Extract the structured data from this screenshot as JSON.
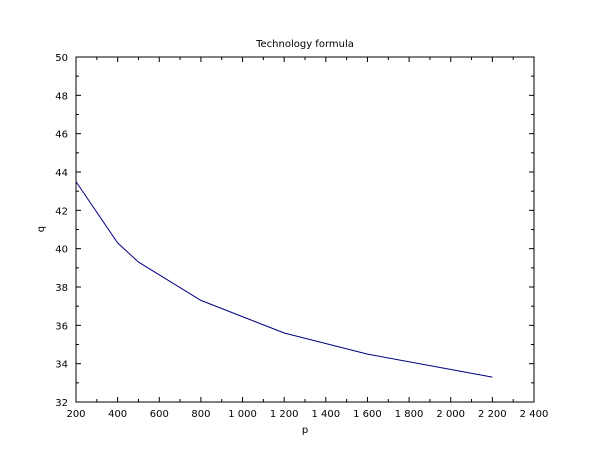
{
  "chart_data": {
    "type": "line",
    "title": "Technology formula",
    "xlabel": "p",
    "ylabel": "q",
    "xlim": [
      200,
      2400
    ],
    "ylim": [
      32,
      50
    ],
    "x_ticks": [
      200,
      400,
      600,
      800,
      1000,
      1200,
      1400,
      1600,
      1800,
      2000,
      2200,
      2400
    ],
    "x_tick_labels": [
      "200",
      "400",
      "600",
      "800",
      "1 000",
      "1 200",
      "1 400",
      "1 600",
      "1 800",
      "2 000",
      "2 200",
      "2 400"
    ],
    "y_ticks": [
      32,
      34,
      36,
      38,
      40,
      42,
      44,
      46,
      48,
      50
    ],
    "y_tick_labels": [
      "32",
      "34",
      "36",
      "38",
      "40",
      "42",
      "44",
      "46",
      "48",
      "50"
    ],
    "grid": false,
    "series": [
      {
        "color": "#000080",
        "x": [
          200,
          400,
          500,
          800,
          1200,
          1600,
          2200
        ],
        "y": [
          43.5,
          40.3,
          39.3,
          37.3,
          35.6,
          34.5,
          33.3
        ]
      }
    ]
  }
}
